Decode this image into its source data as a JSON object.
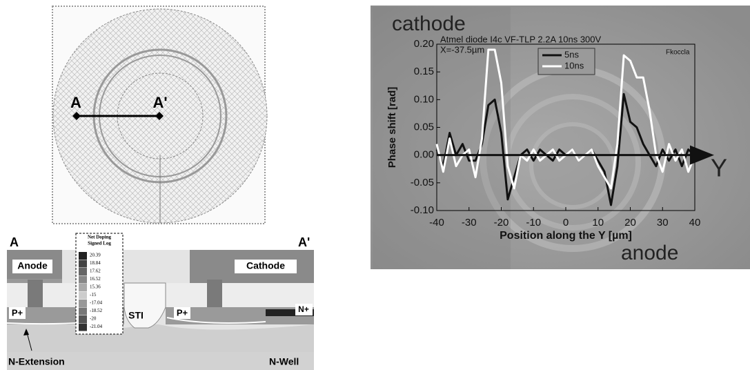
{
  "layout_view": {
    "label_a": "A",
    "label_a_prime": "A'"
  },
  "cross_section": {
    "left_label": "A",
    "right_label": "A'",
    "anode": "Anode",
    "cathode": "Cathode",
    "p_plus_left": "P+",
    "p_plus_right": "P+",
    "sti": "STI",
    "n_plus": "N+",
    "n_extension": "N-Extension",
    "n_well": "N-Well"
  },
  "doping_legend": {
    "title": "Net Doping",
    "subtitle": "Signed Log",
    "levels": [
      "20.39",
      "18.84",
      "17.62",
      "16.52",
      "15.36",
      "-15",
      "-17.04",
      "-18.52",
      "-20",
      "-21.04"
    ]
  },
  "chart_data": {
    "type": "line",
    "title": "Atmel diode I4c VF-TLP 2.2A 10ns 300V",
    "annotations": [
      "X=-37.5µm",
      "Fkoccla",
      "cathode",
      "anode",
      "Y"
    ],
    "x_label": "Position along the Y [µm]",
    "y_label": "Phase shift [rad]",
    "x": [
      -40,
      -38,
      -36,
      -34,
      -32,
      -30,
      -28,
      -26,
      -24,
      -22,
      -20,
      -18,
      -16,
      -14,
      -12,
      -10,
      -8,
      -6,
      -4,
      -2,
      0,
      2,
      4,
      6,
      8,
      10,
      12,
      14,
      16,
      18,
      20,
      22,
      24,
      26,
      28,
      30,
      32,
      34,
      36,
      38,
      40
    ],
    "series": [
      {
        "name": "5ns",
        "color": "#111111",
        "values": [
          0.01,
          -0.02,
          0.04,
          0.0,
          0.02,
          -0.01,
          -0.01,
          0.02,
          0.09,
          0.1,
          0.04,
          -0.08,
          -0.04,
          0.0,
          0.01,
          -0.01,
          0.01,
          0.0,
          -0.01,
          0.01,
          0.0,
          0.01,
          -0.01,
          0.0,
          0.01,
          -0.01,
          -0.03,
          -0.09,
          -0.02,
          0.11,
          0.06,
          0.05,
          0.02,
          0.0,
          -0.02,
          0.01,
          -0.01,
          0.01,
          -0.02,
          0.01,
          0.0
        ]
      },
      {
        "name": "10ns",
        "color": "#ffffff",
        "values": [
          0.02,
          -0.03,
          0.03,
          -0.02,
          0.0,
          0.01,
          -0.04,
          0.03,
          0.19,
          0.19,
          0.13,
          -0.02,
          -0.06,
          0.0,
          -0.01,
          0.01,
          -0.01,
          0.0,
          0.01,
          -0.01,
          0.0,
          0.01,
          -0.01,
          0.0,
          0.01,
          -0.02,
          -0.04,
          -0.06,
          0.02,
          0.18,
          0.17,
          0.14,
          0.14,
          0.08,
          0.0,
          -0.03,
          0.02,
          -0.01,
          0.01,
          -0.03,
          0.0
        ]
      }
    ],
    "xlim": [
      -40,
      40
    ],
    "xticks": [
      -40,
      -30,
      -20,
      -10,
      0,
      10,
      20,
      30,
      40
    ],
    "ylim": [
      -0.1,
      0.2
    ],
    "yticks": [
      {
        "value": -0.1,
        "label": "-0.10"
      },
      {
        "value": -0.05,
        "label": "-0.05"
      },
      {
        "value": 0,
        "label": "0.00"
      },
      {
        "value": 0.05,
        "label": "0.05"
      },
      {
        "value": 0.1,
        "label": "0.10"
      },
      {
        "value": 0.15,
        "label": "0.15"
      },
      {
        "value": 0.2,
        "label": "0.20"
      }
    ]
  }
}
